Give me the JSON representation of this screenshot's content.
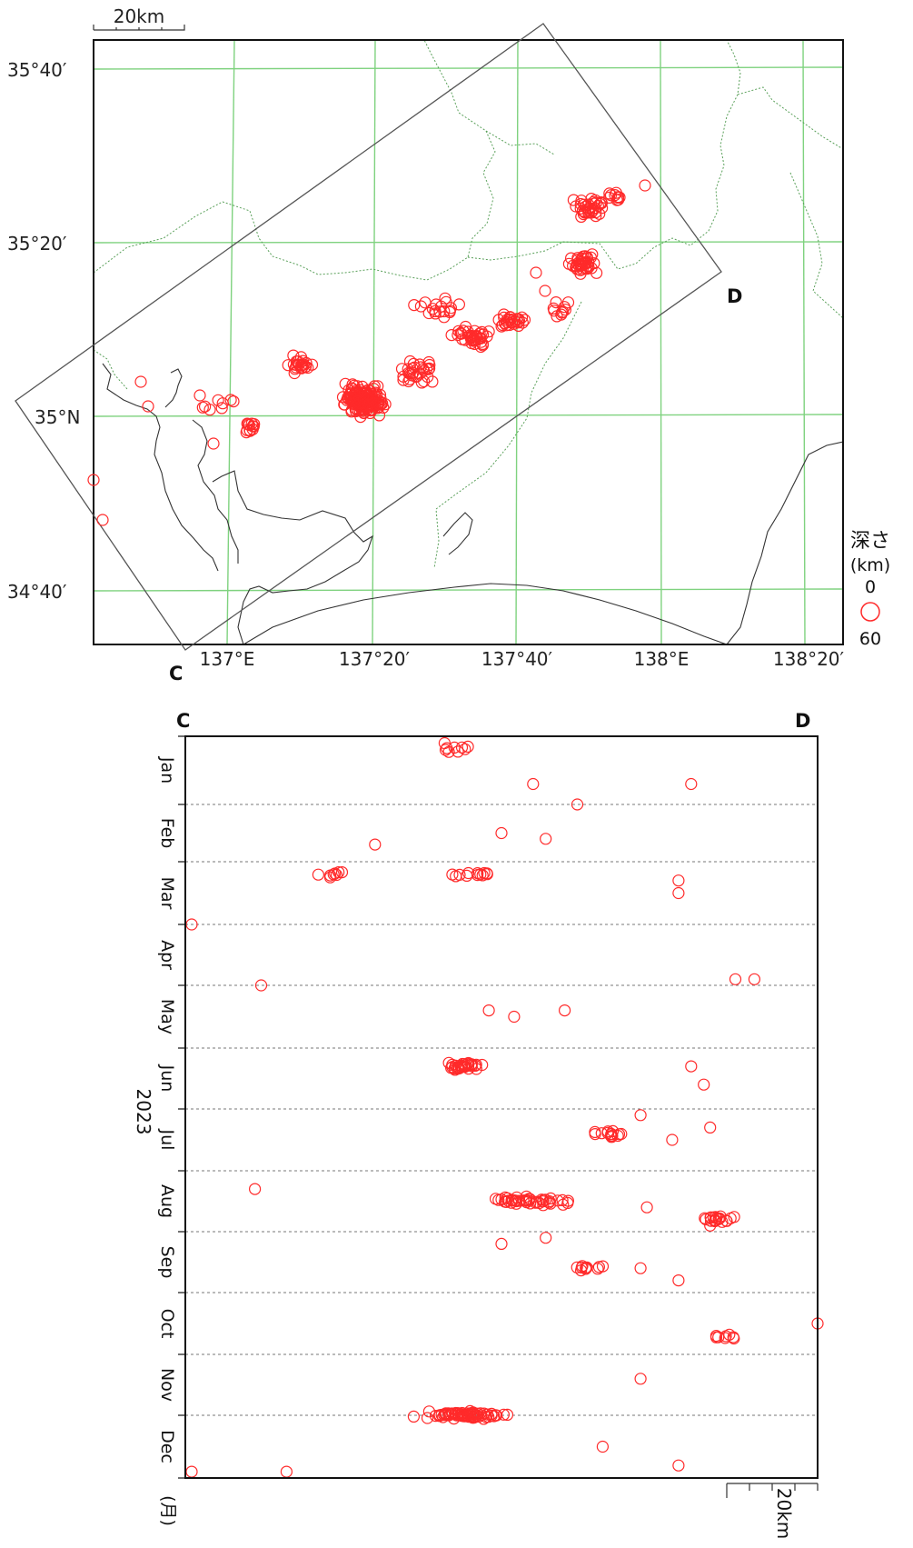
{
  "map": {
    "scale_label": "20km",
    "lat_labels": [
      "35°40′",
      "35°20′",
      "35°N",
      "34°40′"
    ],
    "lon_labels": [
      "137°E",
      "137°20′",
      "137°40′",
      "138°E",
      "138°20′"
    ],
    "section_start": "C",
    "section_end": "D",
    "legend": {
      "title": "深さ",
      "unit": "(km)",
      "depth_min": "0",
      "depth_max": "60"
    },
    "colors": {
      "grid": "#7fd27f",
      "coast": "#333333",
      "border": "#5aa05a",
      "events": "#ff2a2a"
    }
  },
  "timeline": {
    "start_label": "C",
    "end_label": "D",
    "months": [
      "Jan",
      "Feb",
      "Mar",
      "Apr",
      "May",
      "Jun",
      "Jul",
      "Aug",
      "Sep",
      "Oct",
      "Nov",
      "Dec"
    ],
    "year_label": "2023",
    "month_unit": "(月)",
    "scale_label": "20km"
  },
  "chart_data": {
    "type": "scatter",
    "series": [
      {
        "name": "",
        "x_unit": "distance along C–D",
        "y_unit": "month of 2023",
        "clusters": [
          {
            "center": [
              0.43,
              1.2
            ],
            "count": 8
          },
          {
            "center": [
              0.45,
              3.2
            ],
            "count": 12
          },
          {
            "center": [
              0.23,
              3.2
            ],
            "count": 8
          },
          {
            "center": [
              0.44,
              6.3
            ],
            "count": 30
          },
          {
            "center": [
              0.67,
              7.4
            ],
            "count": 14
          },
          {
            "center": [
              0.55,
              8.5
            ],
            "count": 45
          },
          {
            "center": [
              0.85,
              8.8
            ],
            "count": 20
          },
          {
            "center": [
              0.64,
              9.6
            ],
            "count": 10
          },
          {
            "center": [
              0.85,
              10.7
            ],
            "count": 8
          },
          {
            "center": [
              0.44,
              12.0
            ],
            "count": 70
          }
        ]
      }
    ]
  }
}
